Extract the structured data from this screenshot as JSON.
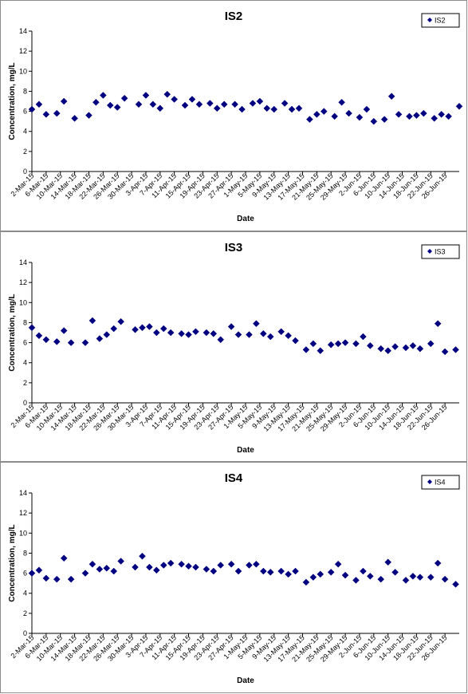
{
  "chart_data": [
    {
      "type": "scatter",
      "title": "IS2",
      "xlabel": "Date",
      "ylabel": "Concentration, mg/L",
      "ylim": [
        0,
        14
      ],
      "yticks": [
        "0",
        "2",
        "4",
        "6",
        "8",
        "10",
        "12",
        "14"
      ],
      "xlim": [
        "2-Mar-15",
        "30-Jun-15"
      ],
      "xtick_labels": [
        "2-Mar-15",
        "6-Mar-15",
        "10-Mar-15",
        "14-Mar-15",
        "18-Mar-15",
        "22-Mar-15",
        "26-Mar-15",
        "30-Mar-15",
        "3-Apr-15",
        "7-Apr-15",
        "11-Apr-15",
        "15-Apr-15",
        "19-Apr-15",
        "23-Apr-15",
        "27-Apr-15",
        "1-May-15",
        "5-May-15",
        "9-May-15",
        "13-May-15",
        "17-May-15",
        "21-May-15",
        "25-May-15",
        "29-May-15",
        "2-Jun-15",
        "6-Jun-15",
        "10-Jun-15",
        "14-Jun-15",
        "18-Jun-15",
        "22-Jun-15",
        "26-Jun-15"
      ],
      "grid": false,
      "legend": "top-right",
      "color": "#000080",
      "series": [
        {
          "name": "IS2",
          "x": [
            "2-Mar-15",
            "4-Mar-15",
            "6-Mar-15",
            "9-Mar-15",
            "11-Mar-15",
            "14-Mar-15",
            "18-Mar-15",
            "20-Mar-15",
            "22-Mar-15",
            "24-Mar-15",
            "26-Mar-15",
            "28-Mar-15",
            "1-Apr-15",
            "3-Apr-15",
            "5-Apr-15",
            "7-Apr-15",
            "9-Apr-15",
            "11-Apr-15",
            "14-Apr-15",
            "16-Apr-15",
            "18-Apr-15",
            "21-Apr-15",
            "23-Apr-15",
            "25-Apr-15",
            "28-Apr-15",
            "30-Apr-15",
            "3-May-15",
            "5-May-15",
            "7-May-15",
            "9-May-15",
            "12-May-15",
            "14-May-15",
            "16-May-15",
            "19-May-15",
            "21-May-15",
            "23-May-15",
            "26-May-15",
            "28-May-15",
            "30-May-15",
            "2-Jun-15",
            "4-Jun-15",
            "6-Jun-15",
            "9-Jun-15",
            "11-Jun-15",
            "13-Jun-15",
            "16-Jun-15",
            "18-Jun-15",
            "20-Jun-15",
            "23-Jun-15",
            "25-Jun-15",
            "27-Jun-15",
            "30-Jun-15"
          ],
          "y": [
            6.2,
            6.7,
            5.7,
            5.8,
            7.0,
            5.3,
            5.6,
            6.9,
            7.6,
            6.6,
            6.4,
            7.3,
            6.7,
            7.6,
            6.7,
            6.3,
            7.7,
            7.2,
            6.6,
            7.2,
            6.7,
            6.8,
            6.3,
            6.7,
            6.7,
            6.2,
            6.8,
            7.0,
            6.3,
            6.2,
            6.8,
            6.2,
            6.3,
            5.2,
            5.7,
            6.0,
            5.5,
            6.9,
            5.8,
            5.4,
            6.2,
            5.0,
            5.2,
            7.5,
            5.7,
            5.5,
            5.6,
            5.8,
            5.3,
            5.7,
            5.5,
            6.5
          ]
        }
      ]
    },
    {
      "type": "scatter",
      "title": "IS3",
      "xlabel": "Date",
      "ylabel": "Concentration, mg/L",
      "ylim": [
        0,
        14
      ],
      "yticks": [
        "0",
        "2",
        "4",
        "6",
        "8",
        "10",
        "12",
        "14"
      ],
      "xlim": [
        "2-Mar-15",
        "30-Jun-15"
      ],
      "xtick_labels": [
        "2-Mar-15",
        "6-Mar-15",
        "10-Mar-15",
        "14-Mar-15",
        "18-Mar-15",
        "22-Mar-15",
        "26-Mar-15",
        "30-Mar-15",
        "3-Apr-15",
        "7-Apr-15",
        "11-Apr-15",
        "15-Apr-15",
        "19-Apr-15",
        "23-Apr-15",
        "27-Apr-15",
        "1-May-15",
        "5-May-15",
        "9-May-15",
        "13-May-15",
        "17-May-15",
        "21-May-15",
        "25-May-15",
        "29-May-15",
        "2-Jun-15",
        "6-Jun-15",
        "10-Jun-15",
        "14-Jun-15",
        "18-Jun-15",
        "22-Jun-15",
        "26-Jun-15"
      ],
      "grid": false,
      "legend": "top-right",
      "color": "#000080",
      "series": [
        {
          "name": "IS3",
          "x": [
            "2-Mar-15",
            "4-Mar-15",
            "6-Mar-15",
            "9-Mar-15",
            "11-Mar-15",
            "13-Mar-15",
            "17-Mar-15",
            "19-Mar-15",
            "21-Mar-15",
            "23-Mar-15",
            "25-Mar-15",
            "27-Mar-15",
            "31-Mar-15",
            "2-Apr-15",
            "4-Apr-15",
            "6-Apr-15",
            "8-Apr-15",
            "10-Apr-15",
            "13-Apr-15",
            "15-Apr-15",
            "17-Apr-15",
            "20-Apr-15",
            "22-Apr-15",
            "24-Apr-15",
            "27-Apr-15",
            "29-Apr-15",
            "2-May-15",
            "4-May-15",
            "6-May-15",
            "8-May-15",
            "11-May-15",
            "13-May-15",
            "15-May-15",
            "18-May-15",
            "20-May-15",
            "22-May-15",
            "25-May-15",
            "27-May-15",
            "29-May-15",
            "1-Jun-15",
            "3-Jun-15",
            "5-Jun-15",
            "8-Jun-15",
            "10-Jun-15",
            "12-Jun-15",
            "15-Jun-15",
            "17-Jun-15",
            "19-Jun-15",
            "22-Jun-15",
            "24-Jun-15",
            "26-Jun-15",
            "29-Jun-15"
          ],
          "y": [
            7.5,
            6.7,
            6.3,
            6.1,
            7.2,
            6.0,
            6.0,
            8.2,
            6.4,
            6.8,
            7.4,
            8.1,
            7.3,
            7.5,
            7.6,
            7.0,
            7.4,
            7.0,
            6.9,
            6.8,
            7.1,
            7.0,
            6.9,
            6.3,
            7.6,
            6.8,
            6.8,
            7.9,
            6.9,
            6.6,
            7.1,
            6.7,
            6.2,
            5.3,
            5.9,
            5.2,
            5.8,
            5.9,
            6.0,
            5.9,
            6.6,
            5.7,
            5.4,
            5.2,
            5.6,
            5.5,
            5.7,
            5.4,
            5.9,
            7.9,
            5.1,
            5.3
          ]
        }
      ]
    },
    {
      "type": "scatter",
      "title": "IS4",
      "xlabel": "Date",
      "ylabel": "Concentration, mg/L",
      "ylim": [
        0,
        14
      ],
      "yticks": [
        "0",
        "2",
        "4",
        "6",
        "8",
        "10",
        "12",
        "14"
      ],
      "xlim": [
        "2-Mar-15",
        "30-Jun-15"
      ],
      "xtick_labels": [
        "2-Mar-15",
        "6-Mar-15",
        "10-Mar-15",
        "14-Mar-15",
        "18-Mar-15",
        "22-Mar-15",
        "26-Mar-15",
        "30-Mar-15",
        "3-Apr-15",
        "7-Apr-15",
        "11-Apr-15",
        "15-Apr-15",
        "19-Apr-15",
        "23-Apr-15",
        "27-Apr-15",
        "1-May-15",
        "5-May-15",
        "9-May-15",
        "13-May-15",
        "17-May-15",
        "21-May-15",
        "25-May-15",
        "29-May-15",
        "2-Jun-15",
        "6-Jun-15",
        "10-Jun-15",
        "14-Jun-15",
        "18-Jun-15",
        "22-Jun-15",
        "26-Jun-15"
      ],
      "grid": false,
      "legend": "top-right",
      "color": "#000080",
      "series": [
        {
          "name": "IS4",
          "x": [
            "2-Mar-15",
            "4-Mar-15",
            "6-Mar-15",
            "9-Mar-15",
            "11-Mar-15",
            "13-Mar-15",
            "17-Mar-15",
            "19-Mar-15",
            "21-Mar-15",
            "23-Mar-15",
            "25-Mar-15",
            "27-Mar-15",
            "31-Mar-15",
            "2-Apr-15",
            "4-Apr-15",
            "6-Apr-15",
            "8-Apr-15",
            "10-Apr-15",
            "13-Apr-15",
            "15-Apr-15",
            "17-Apr-15",
            "20-Apr-15",
            "22-Apr-15",
            "24-Apr-15",
            "27-Apr-15",
            "29-Apr-15",
            "2-May-15",
            "4-May-15",
            "6-May-15",
            "8-May-15",
            "11-May-15",
            "13-May-15",
            "15-May-15",
            "18-May-15",
            "20-May-15",
            "22-May-15",
            "25-May-15",
            "27-May-15",
            "29-May-15",
            "1-Jun-15",
            "3-Jun-15",
            "5-Jun-15",
            "8-Jun-15",
            "10-Jun-15",
            "12-Jun-15",
            "15-Jun-15",
            "17-Jun-15",
            "19-Jun-15",
            "22-Jun-15",
            "24-Jun-15",
            "26-Jun-15",
            "29-Jun-15"
          ],
          "y": [
            6.0,
            6.3,
            5.5,
            5.4,
            7.5,
            5.4,
            6.0,
            6.9,
            6.4,
            6.5,
            6.2,
            7.2,
            6.6,
            7.7,
            6.6,
            6.3,
            6.8,
            7.0,
            6.9,
            6.7,
            6.6,
            6.4,
            6.2,
            6.8,
            6.9,
            6.2,
            6.8,
            6.9,
            6.2,
            6.1,
            6.2,
            5.9,
            6.2,
            5.1,
            5.6,
            5.9,
            6.1,
            6.9,
            5.8,
            5.3,
            6.2,
            5.7,
            5.4,
            7.1,
            6.1,
            5.3,
            5.7,
            5.6,
            5.6,
            7.0,
            5.4,
            4.9
          ]
        }
      ]
    }
  ]
}
